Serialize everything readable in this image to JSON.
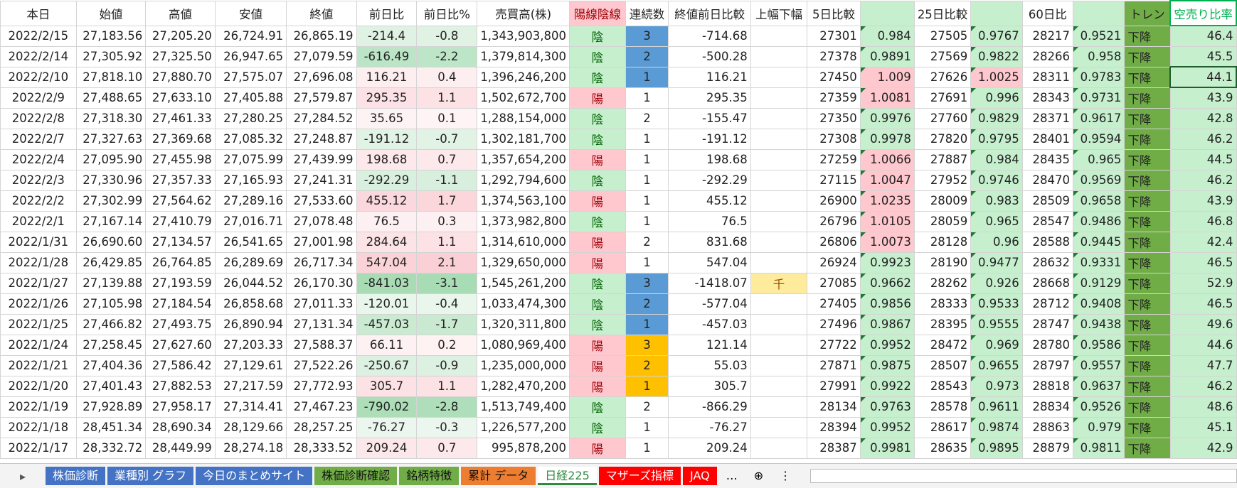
{
  "sheet": {
    "headers": [
      "本日",
      "始値",
      "高値",
      "安値",
      "終値",
      "前日比",
      "前日比%",
      "売買高(株)",
      "陽線陰線",
      "連続数",
      "終値前日比較",
      "上幅下幅",
      "5日比較",
      null,
      "25日比較",
      null,
      "60日比",
      null,
      "トレン",
      "空売り比率"
    ],
    "rows": [
      [
        "2022/2/15",
        "27,183.56",
        "27,205.20",
        "26,724.91",
        "26,865.19",
        "-214.4",
        "-0.8",
        "1,343,903,800",
        "陰",
        "3",
        "-714.68",
        null,
        "27301",
        "0.984",
        "27505",
        "0.9767",
        "28217",
        "0.9521",
        "下降",
        "46.4"
      ],
      [
        "2022/2/14",
        "27,305.92",
        "27,325.50",
        "26,947.65",
        "27,079.59",
        "-616.49",
        "-2.2",
        "1,379,814,300",
        "陰",
        "2",
        "-500.28",
        null,
        "27378",
        "0.9891",
        "27569",
        "0.9822",
        "28266",
        "0.958",
        "下降",
        "45.5"
      ],
      [
        "2022/2/10",
        "27,818.10",
        "27,880.70",
        "27,575.07",
        "27,696.08",
        "116.21",
        "0.4",
        "1,396,246,200",
        "陰",
        "1",
        "116.21",
        null,
        "27450",
        "1.009",
        "27626",
        "1.0025",
        "28311",
        "0.9783",
        "下降",
        "44.1"
      ],
      [
        "2022/2/9",
        "27,488.65",
        "27,633.10",
        "27,405.88",
        "27,579.87",
        "295.35",
        "1.1",
        "1,502,672,700",
        "陽",
        "1",
        "295.35",
        null,
        "27359",
        "1.0081",
        "27691",
        "0.996",
        "28343",
        "0.9731",
        "下降",
        "43.9"
      ],
      [
        "2022/2/8",
        "27,318.30",
        "27,461.33",
        "27,280.25",
        "27,284.52",
        "35.65",
        "0.1",
        "1,288,154,000",
        "陰",
        "2",
        "-155.47",
        null,
        "27350",
        "0.9976",
        "27760",
        "0.9829",
        "28371",
        "0.9617",
        "下降",
        "42.8"
      ],
      [
        "2022/2/7",
        "27,327.63",
        "27,369.68",
        "27,085.32",
        "27,248.87",
        "-191.12",
        "-0.7",
        "1,302,181,700",
        "陰",
        "1",
        "-191.12",
        null,
        "27308",
        "0.9978",
        "27820",
        "0.9795",
        "28401",
        "0.9594",
        "下降",
        "46.2"
      ],
      [
        "2022/2/4",
        "27,095.90",
        "27,455.98",
        "27,075.99",
        "27,439.99",
        "198.68",
        "0.7",
        "1,357,654,200",
        "陽",
        "1",
        "198.68",
        null,
        "27259",
        "1.0066",
        "27887",
        "0.984",
        "28435",
        "0.965",
        "下降",
        "44.5"
      ],
      [
        "2022/2/3",
        "27,330.96",
        "27,357.33",
        "27,165.93",
        "27,241.31",
        "-292.29",
        "-1.1",
        "1,292,794,600",
        "陰",
        "1",
        "-292.29",
        null,
        "27115",
        "1.0047",
        "27952",
        "0.9746",
        "28470",
        "0.9569",
        "下降",
        "46.2"
      ],
      [
        "2022/2/2",
        "27,302.99",
        "27,564.62",
        "27,289.16",
        "27,533.60",
        "455.12",
        "1.7",
        "1,374,563,100",
        "陽",
        "1",
        "455.12",
        null,
        "26900",
        "1.0235",
        "28009",
        "0.983",
        "28509",
        "0.9658",
        "下降",
        "43.9"
      ],
      [
        "2022/2/1",
        "27,167.14",
        "27,410.79",
        "27,016.71",
        "27,078.48",
        "76.5",
        "0.3",
        "1,373,982,800",
        "陰",
        "1",
        "76.5",
        null,
        "26796",
        "1.0105",
        "28059",
        "0.965",
        "28547",
        "0.9486",
        "下降",
        "46.8"
      ],
      [
        "2022/1/31",
        "26,690.60",
        "27,134.57",
        "26,541.65",
        "27,001.98",
        "284.64",
        "1.1",
        "1,314,610,000",
        "陽",
        "2",
        "831.68",
        null,
        "26806",
        "1.0073",
        "28128",
        "0.96",
        "28588",
        "0.9445",
        "下降",
        "42.4"
      ],
      [
        "2022/1/28",
        "26,429.85",
        "26,764.85",
        "26,289.69",
        "26,717.34",
        "547.04",
        "2.1",
        "1,329,650,000",
        "陽",
        "1",
        "547.04",
        null,
        "26924",
        "0.9923",
        "28190",
        "0.9477",
        "28632",
        "0.9331",
        "下降",
        "46.5"
      ],
      [
        "2022/1/27",
        "27,139.88",
        "27,193.59",
        "26,044.52",
        "26,170.30",
        "-841.03",
        "-3.1",
        "1,545,261,200",
        "陰",
        "3",
        "-1418.07",
        "千",
        "27085",
        "0.9662",
        "28262",
        "0.926",
        "28668",
        "0.9129",
        "下降",
        "52.9"
      ],
      [
        "2022/1/26",
        "27,105.98",
        "27,184.54",
        "26,858.68",
        "27,011.33",
        "-120.01",
        "-0.4",
        "1,033,474,300",
        "陰",
        "2",
        "-577.04",
        null,
        "27405",
        "0.9856",
        "28333",
        "0.9533",
        "28712",
        "0.9408",
        "下降",
        "46.5"
      ],
      [
        "2022/1/25",
        "27,466.82",
        "27,493.75",
        "26,890.94",
        "27,131.34",
        "-457.03",
        "-1.7",
        "1,320,311,800",
        "陰",
        "1",
        "-457.03",
        null,
        "27496",
        "0.9867",
        "28395",
        "0.9555",
        "28747",
        "0.9438",
        "下降",
        "49.6"
      ],
      [
        "2022/1/24",
        "27,258.45",
        "27,627.60",
        "27,203.33",
        "27,588.37",
        "66.11",
        "0.2",
        "1,080,969,400",
        "陽",
        "3",
        "121.14",
        null,
        "27722",
        "0.9952",
        "28472",
        "0.969",
        "28780",
        "0.9586",
        "下降",
        "44.6"
      ],
      [
        "2022/1/21",
        "27,404.36",
        "27,586.42",
        "27,129.61",
        "27,522.26",
        "-250.67",
        "-0.9",
        "1,235,000,000",
        "陽",
        "2",
        "55.03",
        null,
        "27871",
        "0.9875",
        "28507",
        "0.9655",
        "28797",
        "0.9557",
        "下降",
        "47.7"
      ],
      [
        "2022/1/20",
        "27,401.43",
        "27,882.53",
        "27,217.59",
        "27,772.93",
        "305.7",
        "1.1",
        "1,282,470,200",
        "陽",
        "1",
        "305.7",
        null,
        "27991",
        "0.9922",
        "28543",
        "0.973",
        "28818",
        "0.9637",
        "下降",
        "46.2"
      ],
      [
        "2022/1/19",
        "27,928.89",
        "27,958.17",
        "27,314.41",
        "27,467.23",
        "-790.02",
        "-2.8",
        "1,513,749,400",
        "陰",
        "2",
        "-866.29",
        null,
        "28134",
        "0.9763",
        "28578",
        "0.9611",
        "28834",
        "0.9526",
        "下降",
        "48.6"
      ],
      [
        "2022/1/18",
        "28,451.34",
        "28,690.34",
        "28,129.66",
        "28,257.25",
        "-76.27",
        "-0.3",
        "1,226,577,200",
        "陰",
        "1",
        "-76.27",
        null,
        "28394",
        "0.9952",
        "28617",
        "0.9874",
        "28863",
        "0.979",
        "下降",
        "45.1"
      ],
      [
        "2022/1/17",
        "28,332.72",
        "28,449.99",
        "28,274.18",
        "28,333.52",
        "209.24",
        "0.7",
        "995,878,200",
        "陽",
        "1",
        "209.24",
        null,
        "28387",
        "0.9981",
        "28635",
        "0.9895",
        "28879",
        "0.9811",
        "下降",
        "42.9"
      ]
    ],
    "tabs": [
      "株価診断",
      "業種別 グラフ",
      "今日のまとめサイト",
      "株価診断確認",
      "銘柄特徴",
      "累計 データ",
      "日経225",
      "マザーズ指標",
      "JAQ"
    ]
  }
}
